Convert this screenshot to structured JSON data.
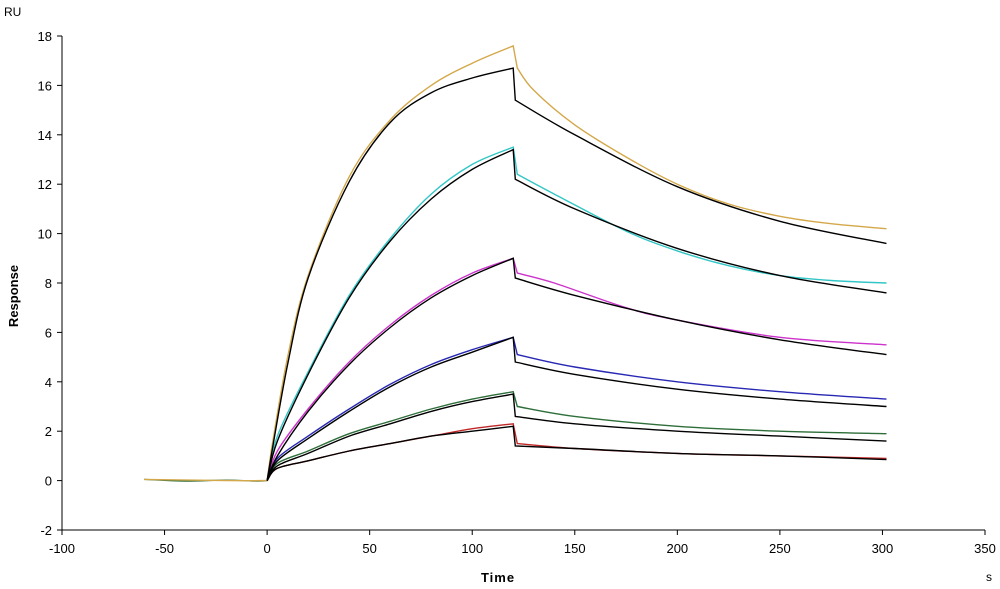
{
  "chart_data": {
    "type": "line",
    "title": "",
    "xlabel": "Time",
    "ylabel": "Response",
    "x_unit": "s",
    "y_unit": "RU",
    "xlim": [
      -100,
      350
    ],
    "ylim": [
      -2,
      18
    ],
    "x_ticks": [
      "-100",
      "-50",
      "0",
      "50",
      "100",
      "150",
      "200",
      "250",
      "300",
      "350"
    ],
    "y_ticks": [
      "-2",
      "0",
      "2",
      "4",
      "6",
      "8",
      "10",
      "12",
      "14",
      "16",
      "18"
    ],
    "grid": false,
    "legend": "none",
    "association_end": 120,
    "series": [
      {
        "color": "#d4a84a",
        "fit": false,
        "points": [
          [
            -60,
            0.05
          ],
          [
            -20,
            0
          ],
          [
            0,
            0
          ],
          [
            2,
            1.2
          ],
          [
            10,
            5.0
          ],
          [
            20,
            8.3
          ],
          [
            40,
            12.3
          ],
          [
            60,
            14.6
          ],
          [
            80,
            16.0
          ],
          [
            100,
            16.9
          ],
          [
            120,
            17.6
          ],
          [
            122,
            16.7
          ],
          [
            130,
            15.8
          ],
          [
            150,
            14.4
          ],
          [
            175,
            13.1
          ],
          [
            200,
            12.0
          ],
          [
            225,
            11.2
          ],
          [
            250,
            10.7
          ],
          [
            275,
            10.4
          ],
          [
            302,
            10.2
          ]
        ]
      },
      {
        "color": "#000000",
        "fit": true,
        "points": [
          [
            0,
            0
          ],
          [
            2,
            1.0
          ],
          [
            10,
            4.7
          ],
          [
            20,
            8.2
          ],
          [
            40,
            12.1
          ],
          [
            60,
            14.5
          ],
          [
            80,
            15.7
          ],
          [
            100,
            16.3
          ],
          [
            120,
            16.7
          ],
          [
            121,
            15.4
          ],
          [
            150,
            14.0
          ],
          [
            200,
            11.9
          ],
          [
            250,
            10.5
          ],
          [
            302,
            9.6
          ]
        ]
      },
      {
        "color": "#33c6c6",
        "fit": false,
        "points": [
          [
            0,
            0
          ],
          [
            5,
            1.8
          ],
          [
            20,
            4.4
          ],
          [
            40,
            7.5
          ],
          [
            60,
            9.8
          ],
          [
            80,
            11.6
          ],
          [
            100,
            12.8
          ],
          [
            120,
            13.5
          ],
          [
            122,
            12.4
          ],
          [
            140,
            11.6
          ],
          [
            175,
            10.1
          ],
          [
            200,
            9.3
          ],
          [
            225,
            8.7
          ],
          [
            250,
            8.3
          ],
          [
            275,
            8.1
          ],
          [
            302,
            8.0
          ]
        ]
      },
      {
        "color": "#000000",
        "fit": true,
        "points": [
          [
            0,
            0
          ],
          [
            5,
            1.6
          ],
          [
            20,
            4.3
          ],
          [
            40,
            7.4
          ],
          [
            60,
            9.7
          ],
          [
            80,
            11.4
          ],
          [
            100,
            12.6
          ],
          [
            120,
            13.4
          ],
          [
            121,
            12.2
          ],
          [
            150,
            11.0
          ],
          [
            200,
            9.4
          ],
          [
            250,
            8.3
          ],
          [
            302,
            7.6
          ]
        ]
      },
      {
        "color": "#cc33cc",
        "fit": false,
        "points": [
          [
            0,
            0
          ],
          [
            5,
            1.2
          ],
          [
            20,
            2.9
          ],
          [
            40,
            4.8
          ],
          [
            60,
            6.3
          ],
          [
            80,
            7.5
          ],
          [
            100,
            8.4
          ],
          [
            120,
            9.0
          ],
          [
            122,
            8.4
          ],
          [
            140,
            8.0
          ],
          [
            175,
            7.0
          ],
          [
            200,
            6.5
          ],
          [
            250,
            5.8
          ],
          [
            302,
            5.5
          ]
        ]
      },
      {
        "color": "#000000",
        "fit": true,
        "points": [
          [
            0,
            0
          ],
          [
            5,
            1.0
          ],
          [
            20,
            2.8
          ],
          [
            40,
            4.7
          ],
          [
            60,
            6.2
          ],
          [
            80,
            7.4
          ],
          [
            100,
            8.3
          ],
          [
            120,
            9.0
          ],
          [
            121,
            8.2
          ],
          [
            150,
            7.5
          ],
          [
            200,
            6.5
          ],
          [
            250,
            5.7
          ],
          [
            302,
            5.1
          ]
        ]
      },
      {
        "color": "#2828b4",
        "fit": false,
        "points": [
          [
            0,
            0
          ],
          [
            5,
            0.9
          ],
          [
            20,
            1.8
          ],
          [
            40,
            2.9
          ],
          [
            60,
            3.9
          ],
          [
            80,
            4.7
          ],
          [
            100,
            5.3
          ],
          [
            120,
            5.8
          ],
          [
            122,
            5.1
          ],
          [
            150,
            4.6
          ],
          [
            200,
            4.0
          ],
          [
            250,
            3.6
          ],
          [
            302,
            3.3
          ]
        ]
      },
      {
        "color": "#000000",
        "fit": true,
        "points": [
          [
            0,
            0
          ],
          [
            5,
            0.8
          ],
          [
            20,
            1.7
          ],
          [
            40,
            2.8
          ],
          [
            60,
            3.8
          ],
          [
            80,
            4.6
          ],
          [
            100,
            5.2
          ],
          [
            120,
            5.8
          ],
          [
            121,
            4.8
          ],
          [
            150,
            4.3
          ],
          [
            200,
            3.7
          ],
          [
            250,
            3.3
          ],
          [
            302,
            3.0
          ]
        ]
      },
      {
        "color": "#2e6e3a",
        "fit": false,
        "points": [
          [
            0,
            0
          ],
          [
            5,
            0.7
          ],
          [
            20,
            1.2
          ],
          [
            40,
            1.9
          ],
          [
            60,
            2.4
          ],
          [
            80,
            2.9
          ],
          [
            100,
            3.3
          ],
          [
            120,
            3.6
          ],
          [
            122,
            3.0
          ],
          [
            150,
            2.6
          ],
          [
            200,
            2.2
          ],
          [
            250,
            2.0
          ],
          [
            302,
            1.9
          ]
        ]
      },
      {
        "color": "#000000",
        "fit": true,
        "points": [
          [
            0,
            0
          ],
          [
            5,
            0.6
          ],
          [
            20,
            1.1
          ],
          [
            40,
            1.8
          ],
          [
            60,
            2.3
          ],
          [
            80,
            2.8
          ],
          [
            100,
            3.2
          ],
          [
            120,
            3.5
          ],
          [
            121,
            2.6
          ],
          [
            150,
            2.3
          ],
          [
            200,
            2.0
          ],
          [
            250,
            1.8
          ],
          [
            302,
            1.6
          ]
        ]
      },
      {
        "color": "#c02828",
        "fit": false,
        "points": [
          [
            0,
            0
          ],
          [
            5,
            0.5
          ],
          [
            20,
            0.8
          ],
          [
            40,
            1.2
          ],
          [
            60,
            1.5
          ],
          [
            80,
            1.8
          ],
          [
            100,
            2.1
          ],
          [
            120,
            2.3
          ],
          [
            122,
            1.5
          ],
          [
            150,
            1.3
          ],
          [
            200,
            1.1
          ],
          [
            250,
            1.0
          ],
          [
            302,
            0.9
          ]
        ]
      },
      {
        "color": "#000000",
        "fit": true,
        "points": [
          [
            0,
            0
          ],
          [
            5,
            0.5
          ],
          [
            20,
            0.8
          ],
          [
            40,
            1.2
          ],
          [
            60,
            1.5
          ],
          [
            80,
            1.8
          ],
          [
            100,
            2.0
          ],
          [
            120,
            2.2
          ],
          [
            121,
            1.4
          ],
          [
            150,
            1.3
          ],
          [
            200,
            1.1
          ],
          [
            250,
            1.0
          ],
          [
            302,
            0.85
          ]
        ]
      }
    ],
    "baseline": [
      [
        -60,
        0.05
      ],
      [
        -40,
        -0.02
      ],
      [
        -20,
        0.02
      ],
      [
        -5,
        -0.02
      ],
      [
        0,
        0
      ]
    ]
  }
}
